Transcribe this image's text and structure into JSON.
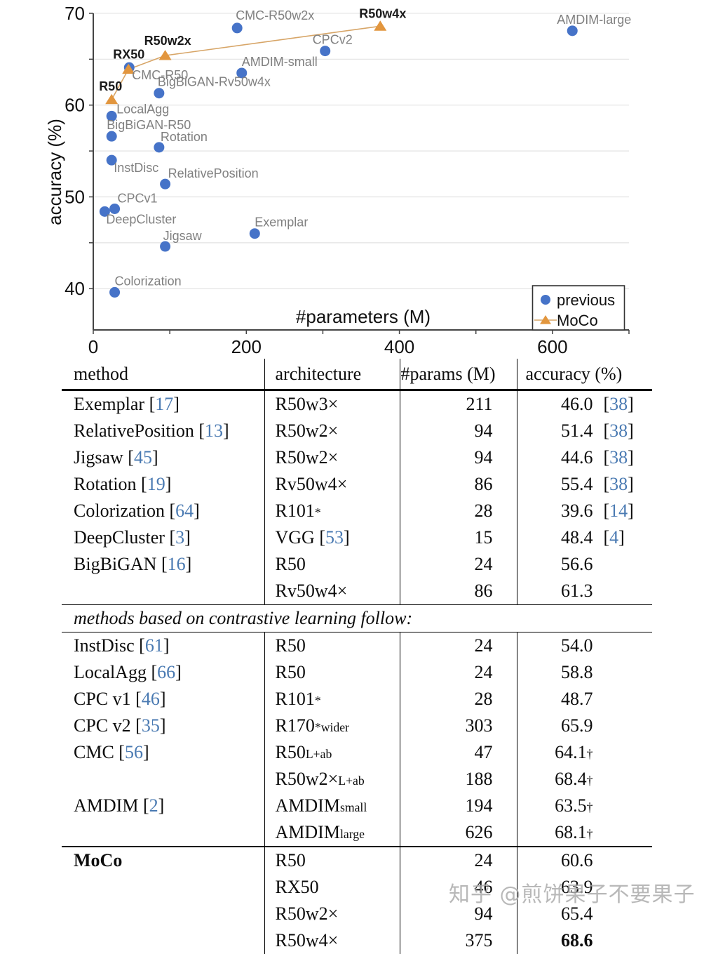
{
  "watermark": {
    "text": "知乎 @煎饼果子不要果子"
  },
  "chart_data": {
    "type": "scatter",
    "title": "",
    "xlabel": "#parameters (M)",
    "ylabel": "accuracy (%)",
    "xlim": [
      0,
      700
    ],
    "ylim": [
      35.5,
      70
    ],
    "xticks": [
      0,
      200,
      400,
      600
    ],
    "xticks_minor": [
      0,
      100,
      200,
      300,
      400,
      500,
      600,
      700
    ],
    "yticks": [
      40,
      50,
      60,
      70
    ],
    "yticks_minor": [
      40,
      45,
      50,
      55,
      60,
      65,
      70
    ],
    "grid_y": [
      40,
      45,
      50,
      55,
      60,
      65,
      70
    ],
    "grid": true,
    "legend_position": "lower right",
    "legend": [
      {
        "label": "previous",
        "marker": "circle"
      },
      {
        "label": "MoCo",
        "marker": "triangle-line"
      }
    ],
    "colors": {
      "previous": "#4673C8",
      "moco": "#E2963E",
      "moco_line": "#D7A567",
      "grid": "#E6E6E6",
      "spine": "#444444",
      "label_gray": "#808080",
      "label_black": "#1a1a1a"
    },
    "series": [
      {
        "name": "previous",
        "marker": "circle",
        "points": [
          {
            "label": "Colorization",
            "x": 28,
            "y": 39.6,
            "dx": 0,
            "dy": -10
          },
          {
            "label": "Jigsaw",
            "x": 94,
            "y": 44.6,
            "dx": -3,
            "dy": -9
          },
          {
            "label": "Exemplar",
            "x": 211,
            "y": 46.0,
            "dx": 0,
            "dy": -10
          },
          {
            "label": "DeepCluster",
            "x": 15,
            "y": 48.4,
            "dx": 2,
            "dy": 17
          },
          {
            "label": "CPCv1",
            "x": 28,
            "y": 48.7,
            "dx": 4,
            "dy": -9
          },
          {
            "label": "RelativePosition",
            "x": 94,
            "y": 51.4,
            "dx": 4,
            "dy": -9
          },
          {
            "label": "InstDisc",
            "x": 24,
            "y": 54.0,
            "dx": 3,
            "dy": 17
          },
          {
            "label": "Rotation",
            "x": 86,
            "y": 55.4,
            "dx": 2,
            "dy": -9
          },
          {
            "label": "BigBiGAN-R50",
            "x": 24,
            "y": 56.6,
            "dx": -7,
            "dy": -10
          },
          {
            "label": "LocalAgg",
            "x": 24,
            "y": 58.8,
            "dx": 7,
            "dy": -4
          },
          {
            "label": "BigBiGAN-Rv50w4x",
            "x": 86,
            "y": 61.3,
            "dx": -2,
            "dy": -10
          },
          {
            "label": "AMDIM-small",
            "x": 194,
            "y": 63.5,
            "dx": 0,
            "dy": -10
          },
          {
            "label": "CMC-R50",
            "x": 47,
            "y": 64.1,
            "dx": 4,
            "dy": 17
          },
          {
            "label": "CPCv2",
            "x": 303,
            "y": 65.9,
            "dx": -18,
            "dy": -10
          },
          {
            "label": "AMDIM-large",
            "x": 626,
            "y": 68.1,
            "dx": -22,
            "dy": -10
          },
          {
            "label": "CMC-R50w2x",
            "x": 188,
            "y": 68.4,
            "dx": -2,
            "dy": -12
          }
        ]
      },
      {
        "name": "MoCo",
        "marker": "triangle",
        "line": true,
        "points": [
          {
            "label": "R50",
            "x": 24,
            "y": 60.6,
            "dx": -18,
            "dy": -13
          },
          {
            "label": "RX50",
            "x": 46,
            "y": 63.9,
            "dx": -22,
            "dy": -15
          },
          {
            "label": "R50w2x",
            "x": 94,
            "y": 65.4,
            "dx": -30,
            "dy": -15
          },
          {
            "label": "R50w4x",
            "x": 375,
            "y": 68.6,
            "dx": -30,
            "dy": -12
          }
        ]
      }
    ]
  },
  "table": {
    "columns": [
      "method",
      "architecture",
      "#params (M)",
      "accuracy (%)"
    ],
    "rows": [
      {
        "method": "Exemplar",
        "mref": "17",
        "arch": "R50w3×",
        "params": "211",
        "acc": "46.0",
        "aref": "38"
      },
      {
        "method": "RelativePosition",
        "mref": "13",
        "arch": "R50w2×",
        "params": "94",
        "acc": "51.4",
        "aref": "38"
      },
      {
        "method": "Jigsaw",
        "mref": "45",
        "arch": "R50w2×",
        "params": "94",
        "acc": "44.6",
        "aref": "38"
      },
      {
        "method": "Rotation",
        "mref": "19",
        "arch": "Rv50w4×",
        "params": "86",
        "acc": "55.4",
        "aref": "38"
      },
      {
        "method": "Colorization",
        "mref": "64",
        "arch": "R101",
        "arch_sup": "*",
        "params": "28",
        "acc": "39.6",
        "aref": "14"
      },
      {
        "method": "DeepCluster",
        "mref": "3",
        "arch": "VGG",
        "arch_ref": "53",
        "params": "15",
        "acc": "48.4",
        "aref": "4"
      },
      {
        "method": "BigBiGAN",
        "mref": "16",
        "arch": "R50",
        "params": "24",
        "acc": "56.6"
      },
      {
        "arch": "Rv50w4×",
        "params": "86",
        "acc": "61.3"
      },
      {
        "section": "methods based on contrastive learning follow:"
      },
      {
        "method": "InstDisc",
        "mref": "61",
        "arch": "R50",
        "params": "24",
        "acc": "54.0"
      },
      {
        "method": "LocalAgg",
        "mref": "66",
        "arch": "R50",
        "params": "24",
        "acc": "58.8"
      },
      {
        "method": "CPC v1",
        "mref": "46",
        "arch": "R101",
        "arch_sup": "*",
        "params": "28",
        "acc": "48.7"
      },
      {
        "method": "CPC v2",
        "mref": "35",
        "arch": "R170",
        "arch_sup": "*",
        "arch_sub": "wider",
        "params": "303",
        "acc": "65.9"
      },
      {
        "method": "CMC",
        "mref": "56",
        "arch": "R50",
        "arch_sub": "L+ab",
        "params": "47",
        "acc": "64.1",
        "dagger": "†"
      },
      {
        "arch": "R50w2×",
        "arch_sub": "L+ab",
        "params": "188",
        "acc": "68.4",
        "dagger": "†"
      },
      {
        "method": "AMDIM",
        "mref": "2",
        "arch": "AMDIM",
        "arch_sub": "small",
        "params": "194",
        "acc": "63.5",
        "dagger": "†"
      },
      {
        "arch": "AMDIM",
        "arch_sub": "large",
        "params": "626",
        "acc": "68.1",
        "dagger": "†"
      },
      {
        "method": "MoCo",
        "bold": true,
        "rule": "thick",
        "arch": "R50",
        "params": "24",
        "acc": "60.6"
      },
      {
        "arch": "RX50",
        "params": "46",
        "acc": "63.9"
      },
      {
        "arch": "R50w2×",
        "params": "94",
        "acc": "65.4"
      },
      {
        "arch": "R50w4×",
        "params": "375",
        "acc": "68.6",
        "acc_bold": true
      }
    ]
  }
}
